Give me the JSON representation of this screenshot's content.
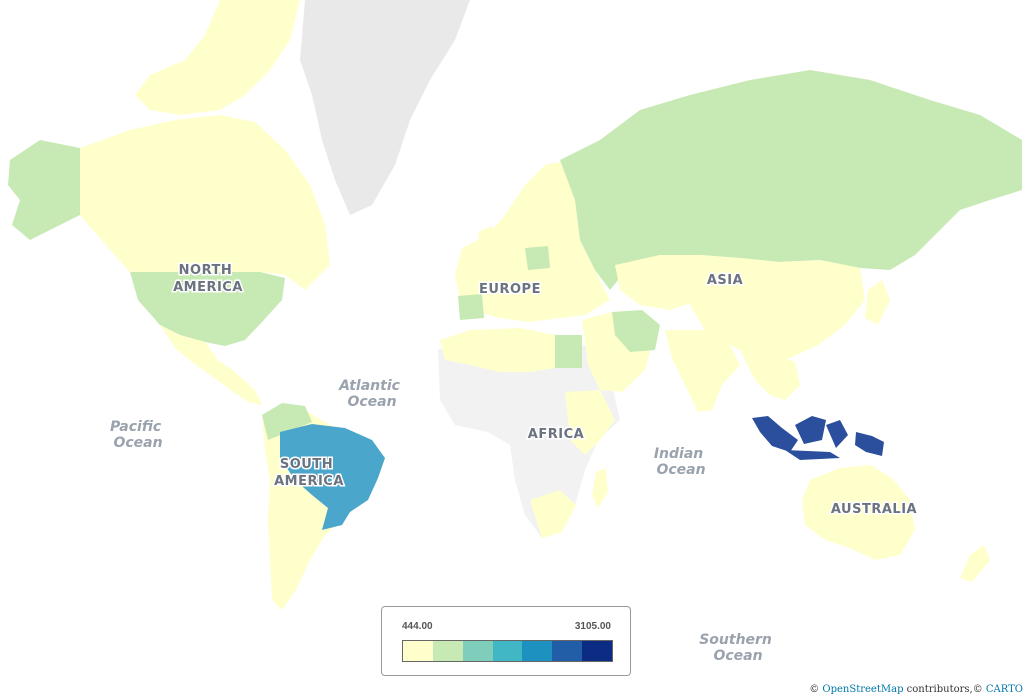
{
  "map": {
    "continents": {
      "north_america": [
        "NORTH",
        "AMERICA"
      ],
      "south_america": [
        "SOUTH",
        "AMERICA"
      ],
      "europe": "EUROPE",
      "asia": "ASIA",
      "africa": "AFRICA",
      "australia": "AUSTRALIA"
    },
    "oceans": {
      "atlantic": [
        "Atlantic",
        "Ocean"
      ],
      "pacific": [
        "Pacific",
        "Ocean"
      ],
      "indian": [
        "Indian",
        "Ocean"
      ],
      "southern": [
        "Southern",
        "Ocean"
      ]
    },
    "colors": {
      "background": "#ffffff",
      "no_data": "#f2f2f2",
      "greenland": "#e9e9e9",
      "bin1": "#ffffcc",
      "bin2": "#c7e9b4",
      "bin3": "#7fcdbb",
      "bin4": "#41b6c4",
      "bin5": "#1d91c0",
      "bin6": "#225ea8",
      "bin7": "#0c2c84",
      "brazil": "#4ba6cc",
      "indonesia": "#2b4f9c"
    }
  },
  "legend": {
    "min": "444.00",
    "max": "3105.00",
    "bins": [
      "#ffffcc",
      "#c7e9b4",
      "#7fcdbb",
      "#41b6c4",
      "#1d91c0",
      "#225ea8",
      "#0c2c84"
    ]
  },
  "attribution": {
    "prefix": "©",
    "osm": "OpenStreetMap",
    "contributors": "contributors,©",
    "carto": "CARTO"
  }
}
